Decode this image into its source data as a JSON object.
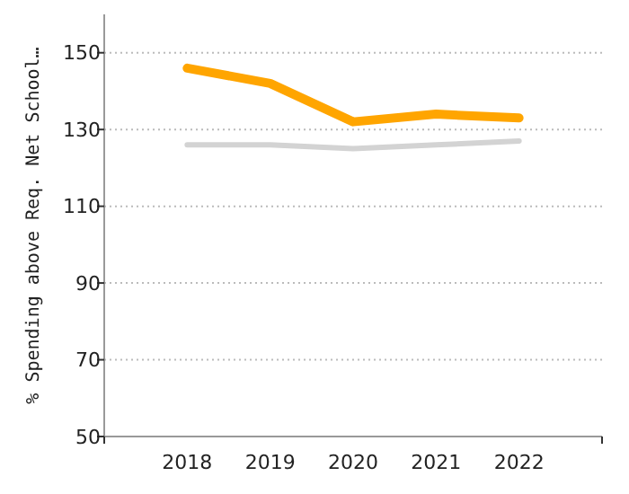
{
  "chart_data": {
    "type": "line",
    "ylabel": "% Spending above Req. Net School…",
    "categories": [
      "2018",
      "2019",
      "2020",
      "2021",
      "2022"
    ],
    "series": [
      {
        "color": "#ffa500",
        "values": [
          146,
          142,
          132,
          134,
          133
        ]
      },
      {
        "color": "#d3d3d3",
        "values": [
          126,
          126,
          125,
          126,
          127
        ]
      }
    ],
    "ylim": [
      50,
      160
    ],
    "yticks": [
      50,
      70,
      90,
      110,
      130,
      150
    ],
    "grid": "y",
    "marker": "none",
    "line_style": "solid"
  }
}
